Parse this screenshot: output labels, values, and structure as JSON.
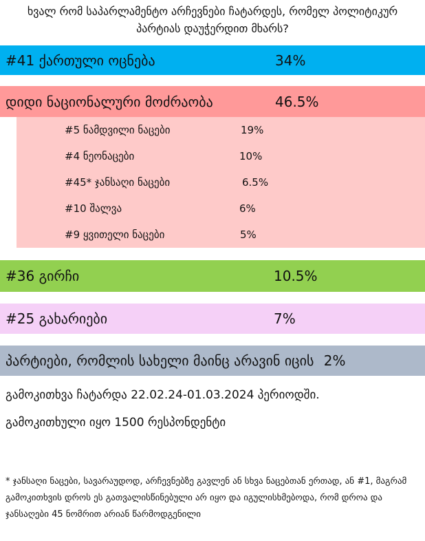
{
  "question": "ხვალ რომ საპარლამენტო არჩევნები ჩატარდეს, რომელ პოლიტიკურ პარტიას დაუჭერდით მხარს?",
  "chart_data": {
    "type": "table",
    "title": "ხვალ რომ საპარლამენტო არჩევნები ჩატარდეს, რომელ პოლიტიკურ პარტიას დაუჭერდით მხარს?",
    "unit": "%",
    "parties": [
      {
        "label": "#41 ქართული ოცნება",
        "value": 34,
        "value_label": "34%",
        "color": "#00b0f0"
      },
      {
        "label": "დიდი ნაციონალური მოძრაობა",
        "value": 46.5,
        "value_label": "46.5%",
        "color": "#ff9999",
        "breakdown_color": "#fecac9",
        "breakdown": [
          {
            "label": "#5 ნამდვილი ნაცები",
            "value": 19,
            "value_label": "19%"
          },
          {
            "label": "#4 ნეონაცები",
            "value": 10,
            "value_label": "10%"
          },
          {
            "label": "#45* ჯანსაღი ნაცები",
            "value": 6.5,
            "value_label": "6.5%"
          },
          {
            "label": "#10 შალვა",
            "value": 6,
            "value_label": "6%"
          },
          {
            "label": "#9 ყვითელი ნაცები",
            "value": 5,
            "value_label": "5%"
          }
        ]
      },
      {
        "label": "#36 გირჩი",
        "value": 10.5,
        "value_label": "10.5%",
        "color": "#92d050"
      },
      {
        "label": "#25 გახარიები",
        "value": 7,
        "value_label": "7%",
        "color": "#f5d0f7"
      },
      {
        "label": "პარტიები, რომლის სახელი მაინც არავინ იცის",
        "value": 2,
        "value_label": "2%",
        "color": "#adb9ca"
      }
    ]
  },
  "notes": {
    "period": "გამოკითხვა ჩატარდა 22.02.24-01.03.2024 პერიოდში.",
    "respondents": "გამოკითხული იყო 1500 რესპონდენტი",
    "footnote": "* ჯანსაღი ნაცები, სავარაუდოდ, არჩევნებზე გავლენ ან სხვა ნაცებთან ერთად, ან #1, მაგრამ გამოკითხვის დროს ეს გათვალისწინებული არ იყო და იგულისხმებოდა, რომ დროა და ჯანსაღები 45 ნომრით არიან წარმოდგენილი"
  }
}
